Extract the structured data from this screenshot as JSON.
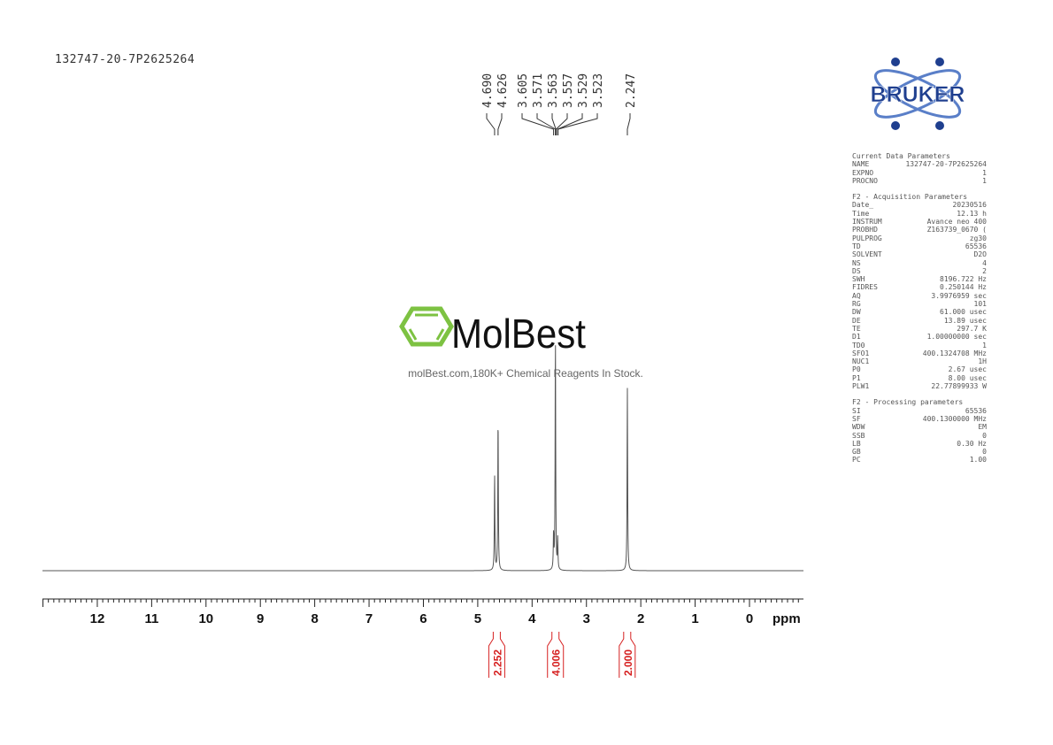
{
  "sample_name": "132747-20-7P2625264",
  "watermark": {
    "brand": "MolBest",
    "tagline": "molBest.com,180K+ Chemical Reagents In Stock.",
    "color": "#7dc242"
  },
  "logo": {
    "text": "BRUKER",
    "color": "#1f3f8f"
  },
  "parameters": {
    "current": {
      "title": "Current Data Parameters",
      "rows": [
        [
          "NAME",
          "132747-20-7P2625264"
        ],
        [
          "EXPNO",
          "1"
        ],
        [
          "PROCNO",
          "1"
        ]
      ]
    },
    "acquisition": {
      "title": "F2 - Acquisition Parameters",
      "rows": [
        [
          "Date_",
          "20230516"
        ],
        [
          "Time",
          "12.13 h"
        ],
        [
          "INSTRUM",
          "Avance neo 400"
        ],
        [
          "PROBHD",
          "Z163739_0670 ("
        ],
        [
          "PULPROG",
          "zg30"
        ],
        [
          "TD",
          "65536"
        ],
        [
          "SOLVENT",
          "D2O"
        ],
        [
          "NS",
          "4"
        ],
        [
          "DS",
          "2"
        ],
        [
          "SWH",
          "8196.722 Hz"
        ],
        [
          "FIDRES",
          "0.250144 Hz"
        ],
        [
          "AQ",
          "3.9976959 sec"
        ],
        [
          "RG",
          "101"
        ],
        [
          "DW",
          "61.000 usec"
        ],
        [
          "DE",
          "13.89 usec"
        ],
        [
          "TE",
          "297.7 K"
        ],
        [
          "D1",
          "1.00000000 sec"
        ],
        [
          "TD0",
          "1"
        ],
        [
          "SFO1",
          "400.1324708 MHz"
        ],
        [
          "NUC1",
          "1H"
        ],
        [
          "P0",
          "2.67 usec"
        ],
        [
          "P1",
          "8.00 usec"
        ],
        [
          "PLW1",
          "22.77899933 W"
        ]
      ]
    },
    "processing": {
      "title": "F2 - Processing parameters",
      "rows": [
        [
          "SI",
          "65536"
        ],
        [
          "SF",
          "400.1300000 MHz"
        ],
        [
          "WDW",
          "EM"
        ],
        [
          "SSB",
          "0"
        ],
        [
          "LB",
          "0.30 Hz"
        ],
        [
          "GB",
          "0"
        ],
        [
          "PC",
          "1.00"
        ]
      ]
    }
  },
  "chart_data": {
    "type": "line",
    "xlabel": "ppm",
    "xlim": [
      13,
      -1
    ],
    "x_reversed": true,
    "xticks": [
      "12",
      "11",
      "10",
      "9",
      "8",
      "7",
      "6",
      "5",
      "4",
      "3",
      "2",
      "1",
      "0"
    ],
    "peak_labels": [
      "4.690",
      "4.626",
      "3.605",
      "3.571",
      "3.563",
      "3.557",
      "3.529",
      "3.523",
      "2.247"
    ],
    "peaks": [
      {
        "ppm": 4.69,
        "intensity": 41
      },
      {
        "ppm": 4.626,
        "intensity": 66
      },
      {
        "ppm": 3.605,
        "intensity": 15
      },
      {
        "ppm": 3.571,
        "intensity": 100
      },
      {
        "ppm": 3.529,
        "intensity": 13
      },
      {
        "ppm": 2.247,
        "intensity": 78
      }
    ],
    "integrals": [
      {
        "ppm": 4.65,
        "value": "2.252"
      },
      {
        "ppm": 3.57,
        "value": "4.006"
      },
      {
        "ppm": 2.25,
        "value": "2.000"
      }
    ],
    "line_color": "#555555",
    "integral_color": "#d62020"
  }
}
